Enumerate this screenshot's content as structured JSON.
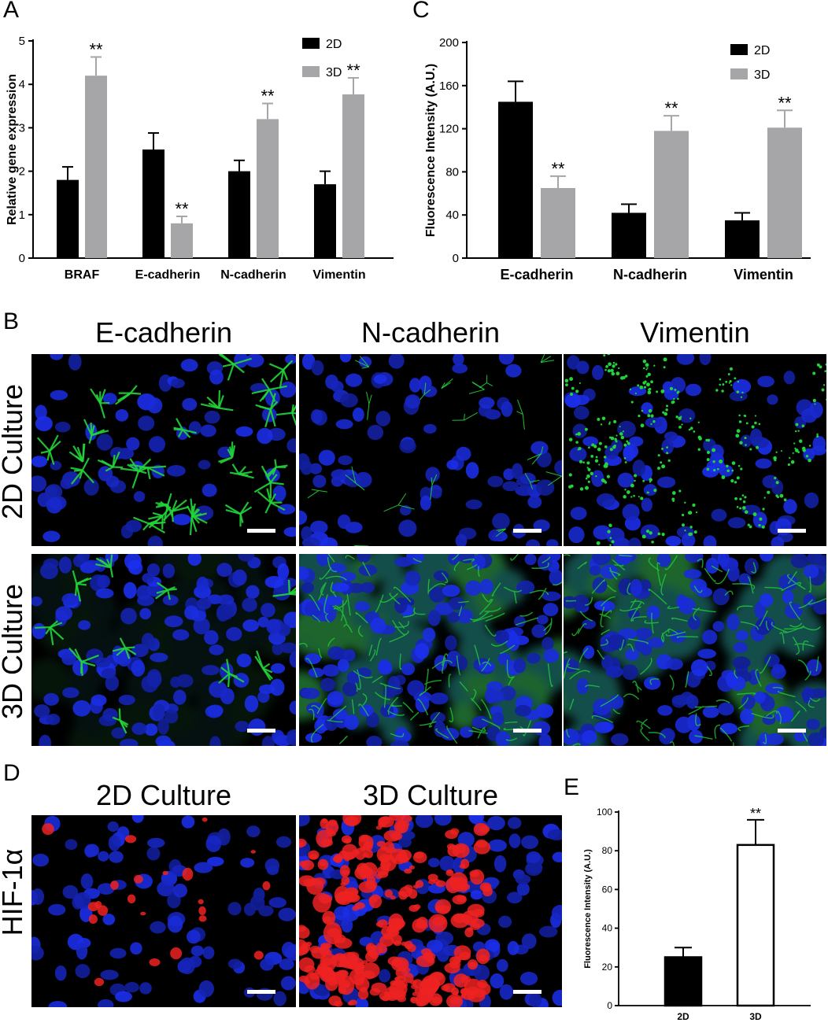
{
  "panel_labels": {
    "a": "A",
    "b": "B",
    "c": "C",
    "d": "D",
    "e": "E"
  },
  "colors": {
    "series_2d": "#000000",
    "series_3d": "#a6a6a8",
    "nuclei": "#1a2ee0",
    "green_stain": "#22d43a",
    "red_stain": "#ee2222",
    "background": "#000000",
    "scale_bar": "#ffffff"
  },
  "chart_data": [
    {
      "id": "A",
      "type": "bar",
      "title": "",
      "ylabel": "Relative gene expression",
      "xlabel": "",
      "ylim": [
        0,
        5
      ],
      "yticks": [
        "0",
        "1",
        "2",
        "3",
        "4",
        "5"
      ],
      "categories": [
        "BRAF",
        "E-cadherin",
        "N-cadherin",
        "Vimentin"
      ],
      "legend": "top-right",
      "series": [
        {
          "name": "2D",
          "values": [
            1.8,
            2.5,
            2.0,
            1.7
          ],
          "errors": [
            0.3,
            0.38,
            0.25,
            0.3
          ],
          "sig": [
            "",
            "",
            "",
            ""
          ]
        },
        {
          "name": "3D",
          "values": [
            4.2,
            0.8,
            3.2,
            3.77
          ],
          "errors": [
            0.43,
            0.16,
            0.36,
            0.38
          ],
          "sig": [
            "**",
            "**",
            "**",
            "**"
          ]
        }
      ]
    },
    {
      "id": "C",
      "type": "bar",
      "title": "",
      "ylabel": "Fluorescence Intensity (A.U.)",
      "xlabel": "",
      "ylim": [
        0,
        200
      ],
      "yticks": [
        "0",
        "40",
        "80",
        "120",
        "160",
        "200"
      ],
      "categories": [
        "E-cadherin",
        "N-cadherin",
        "Vimentin"
      ],
      "legend": "top-right",
      "series": [
        {
          "name": "2D",
          "values": [
            145,
            42,
            35
          ],
          "errors": [
            19,
            8,
            7
          ],
          "sig": [
            "",
            "",
            ""
          ]
        },
        {
          "name": "3D",
          "values": [
            65,
            118,
            121
          ],
          "errors": [
            11,
            14,
            16
          ],
          "sig": [
            "**",
            "**",
            "**"
          ]
        }
      ]
    },
    {
      "id": "E",
      "type": "bar",
      "title": "",
      "ylabel": "Fluorescence Intensity (A.U.)",
      "xlabel": "",
      "ylim": [
        0,
        100
      ],
      "yticks": [
        "0",
        "20",
        "40",
        "60",
        "80",
        "100"
      ],
      "categories": [
        "2D",
        "3D"
      ],
      "values": [
        25,
        83
      ],
      "errors": [
        5,
        13
      ],
      "sig": [
        "",
        "**"
      ],
      "fills": [
        "#000000",
        "#ffffff"
      ]
    }
  ],
  "panel_b": {
    "columns": [
      "E-cadherin",
      "N-cadherin",
      "Vimentin"
    ],
    "rows": [
      "2D Culture",
      "3D Culture"
    ]
  },
  "panel_d": {
    "columns": [
      "2D Culture",
      "3D Culture"
    ],
    "row": "HIF-1α"
  }
}
